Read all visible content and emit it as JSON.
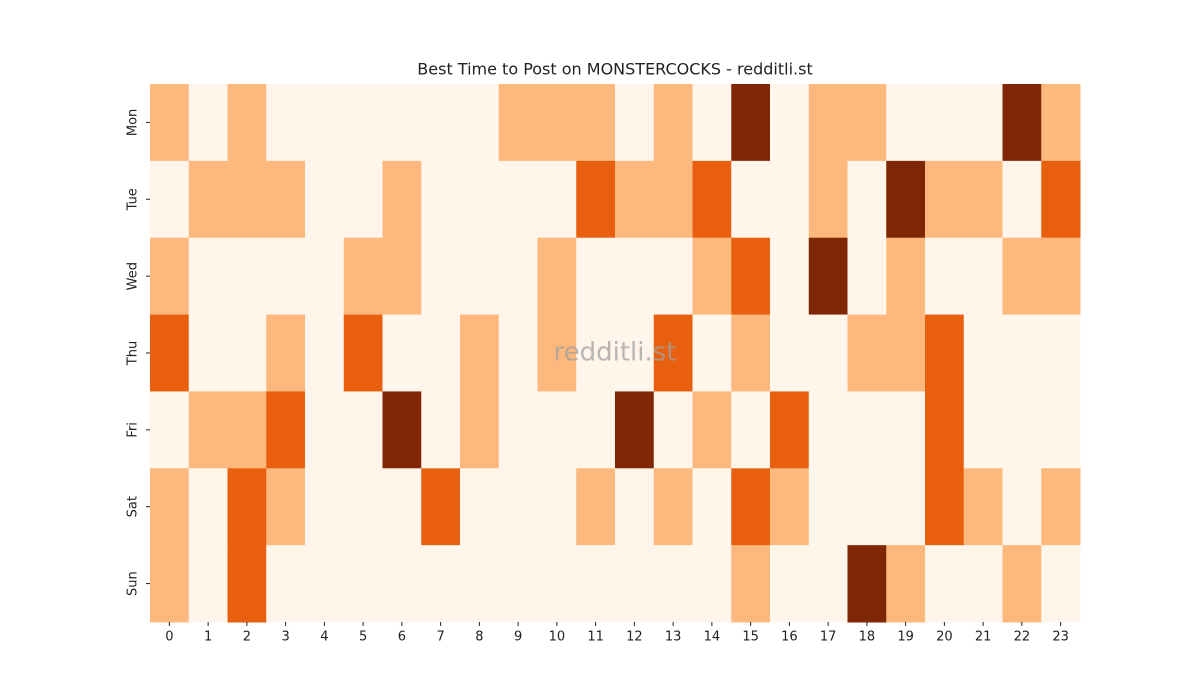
{
  "chart_data": {
    "type": "heatmap",
    "title": "Best Time to Post on MONSTERCOCKS - redditli.st",
    "watermark": "redditli.st",
    "categories": [
      0,
      1,
      2,
      3,
      4,
      5,
      6,
      7,
      8,
      9,
      10,
      11,
      12,
      13,
      14,
      15,
      16,
      17,
      18,
      19,
      20,
      21,
      22,
      23
    ],
    "rows": [
      "Mon",
      "Tue",
      "Wed",
      "Thu",
      "Fri",
      "Sat",
      "Sun"
    ],
    "zlim": [
      0,
      3
    ],
    "colors": [
      "#fff5eb",
      "#fdb97d",
      "#e8600f",
      "#7f2704"
    ],
    "values": [
      [
        1,
        0,
        1,
        0,
        0,
        0,
        0,
        0,
        0,
        1,
        1,
        1,
        0,
        1,
        0,
        3,
        0,
        1,
        1,
        0,
        0,
        0,
        3,
        1
      ],
      [
        0,
        1,
        1,
        1,
        0,
        0,
        1,
        0,
        0,
        0,
        0,
        2,
        1,
        1,
        2,
        0,
        0,
        1,
        0,
        3,
        1,
        1,
        0,
        2
      ],
      [
        1,
        0,
        0,
        0,
        0,
        1,
        1,
        0,
        0,
        0,
        1,
        0,
        0,
        0,
        1,
        2,
        0,
        3,
        0,
        1,
        0,
        0,
        1,
        1
      ],
      [
        2,
        0,
        0,
        1,
        0,
        2,
        0,
        0,
        1,
        0,
        1,
        0,
        0,
        2,
        0,
        1,
        0,
        0,
        1,
        1,
        2,
        0,
        0,
        0
      ],
      [
        0,
        1,
        1,
        2,
        0,
        0,
        3,
        0,
        1,
        0,
        0,
        0,
        3,
        0,
        1,
        0,
        2,
        0,
        0,
        0,
        2,
        0,
        0,
        0
      ],
      [
        1,
        0,
        2,
        1,
        0,
        0,
        0,
        2,
        0,
        0,
        0,
        1,
        0,
        1,
        0,
        2,
        1,
        0,
        0,
        0,
        2,
        1,
        0,
        1
      ],
      [
        1,
        0,
        2,
        0,
        0,
        0,
        0,
        0,
        0,
        0,
        0,
        0,
        0,
        0,
        0,
        1,
        0,
        0,
        3,
        1,
        0,
        0,
        1,
        0
      ]
    ]
  }
}
